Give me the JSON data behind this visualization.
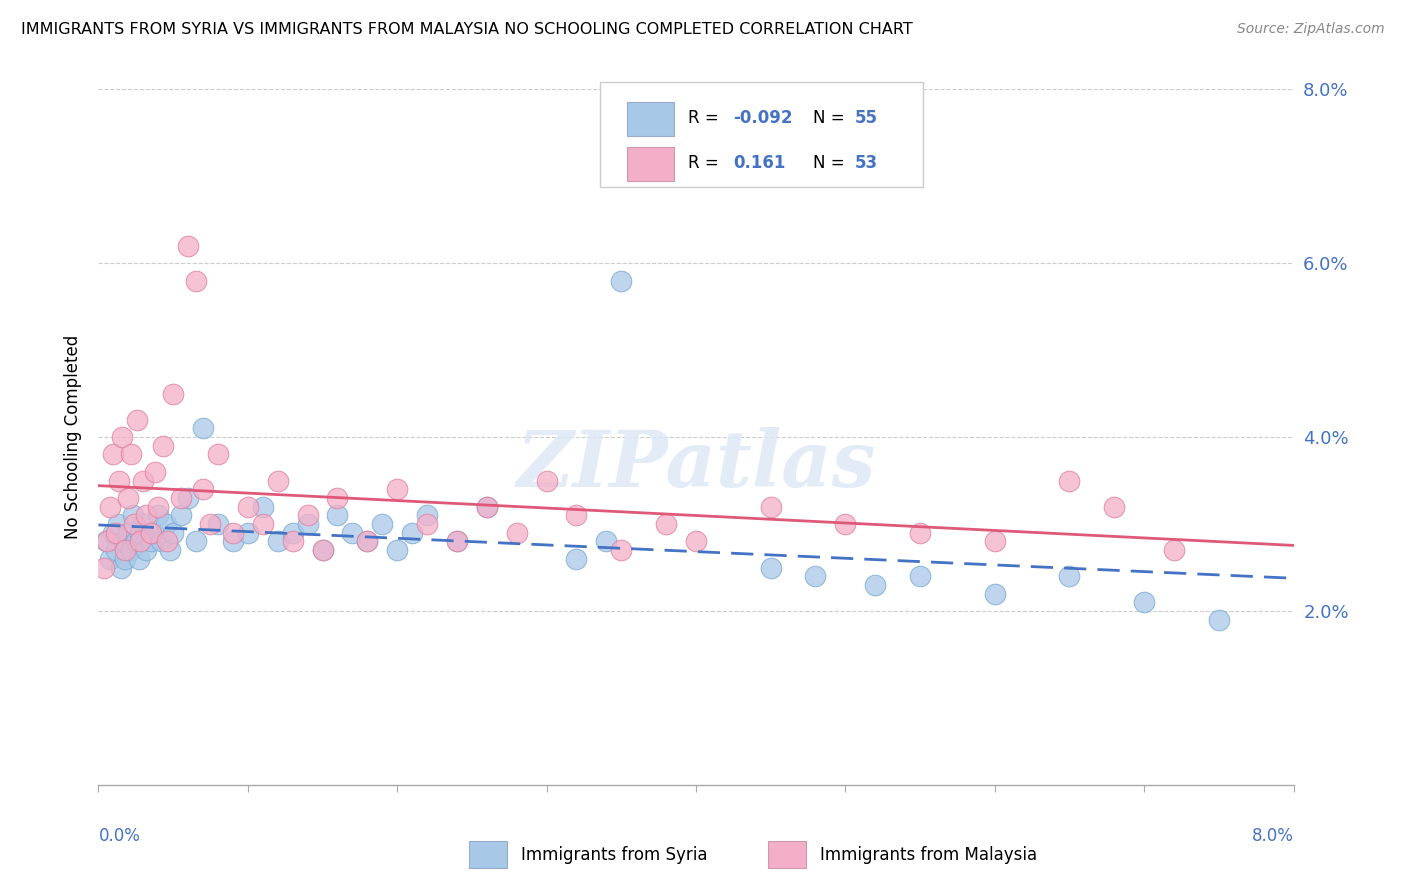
{
  "title": "IMMIGRANTS FROM SYRIA VS IMMIGRANTS FROM MALAYSIA NO SCHOOLING COMPLETED CORRELATION CHART",
  "source": "Source: ZipAtlas.com",
  "ylabel": "No Schooling Completed",
  "legend_syria": "Immigrants from Syria",
  "legend_malaysia": "Immigrants from Malaysia",
  "r_syria": "-0.092",
  "n_syria": "55",
  "r_malaysia": "0.161",
  "n_malaysia": "53",
  "xlim": [
    0.0,
    8.0
  ],
  "ylim": [
    0.0,
    8.0
  ],
  "color_syria": "#a8c8e8",
  "color_malaysia": "#f4afc8",
  "color_syria_line": "#4472c4",
  "color_malaysia_line": "#e05878",
  "watermark": "ZIPatlas",
  "syria_x": [
    0.05,
    0.08,
    0.1,
    0.12,
    0.13,
    0.15,
    0.17,
    0.18,
    0.2,
    0.22,
    0.23,
    0.25,
    0.27,
    0.28,
    0.3,
    0.32,
    0.35,
    0.37,
    0.4,
    0.42,
    0.45,
    0.48,
    0.5,
    0.55,
    0.6,
    0.65,
    0.7,
    0.8,
    0.9,
    1.0,
    1.1,
    1.2,
    1.3,
    1.4,
    1.5,
    1.6,
    1.7,
    1.8,
    1.9,
    2.0,
    2.1,
    2.2,
    2.4,
    2.6,
    3.2,
    3.4,
    3.5,
    4.5,
    4.8,
    5.2,
    5.5,
    6.0,
    6.5,
    7.0,
    7.5
  ],
  "syria_y": [
    2.8,
    2.6,
    2.9,
    2.7,
    3.0,
    2.5,
    2.8,
    2.6,
    2.9,
    2.7,
    3.1,
    2.8,
    2.6,
    2.9,
    3.0,
    2.7,
    2.8,
    2.9,
    3.1,
    2.8,
    3.0,
    2.7,
    2.9,
    3.1,
    3.3,
    2.8,
    4.1,
    3.0,
    2.8,
    2.9,
    3.2,
    2.8,
    2.9,
    3.0,
    2.7,
    3.1,
    2.9,
    2.8,
    3.0,
    2.7,
    2.9,
    3.1,
    2.8,
    3.2,
    2.6,
    2.8,
    5.8,
    2.5,
    2.4,
    2.3,
    2.4,
    2.2,
    2.4,
    2.1,
    1.9
  ],
  "malaysia_x": [
    0.04,
    0.06,
    0.08,
    0.1,
    0.12,
    0.14,
    0.16,
    0.18,
    0.2,
    0.22,
    0.24,
    0.26,
    0.28,
    0.3,
    0.32,
    0.35,
    0.38,
    0.4,
    0.43,
    0.46,
    0.5,
    0.55,
    0.6,
    0.65,
    0.7,
    0.75,
    0.8,
    0.9,
    1.0,
    1.1,
    1.2,
    1.3,
    1.4,
    1.5,
    1.6,
    1.8,
    2.0,
    2.2,
    2.4,
    2.6,
    2.8,
    3.0,
    3.2,
    3.5,
    3.8,
    4.0,
    4.5,
    5.0,
    5.5,
    6.0,
    6.5,
    6.8,
    7.2
  ],
  "malaysia_y": [
    2.5,
    2.8,
    3.2,
    3.8,
    2.9,
    3.5,
    4.0,
    2.7,
    3.3,
    3.8,
    3.0,
    4.2,
    2.8,
    3.5,
    3.1,
    2.9,
    3.6,
    3.2,
    3.9,
    2.8,
    4.5,
    3.3,
    6.2,
    5.8,
    3.4,
    3.0,
    3.8,
    2.9,
    3.2,
    3.0,
    3.5,
    2.8,
    3.1,
    2.7,
    3.3,
    2.8,
    3.4,
    3.0,
    2.8,
    3.2,
    2.9,
    3.5,
    3.1,
    2.7,
    3.0,
    2.8,
    3.2,
    3.0,
    2.9,
    2.8,
    3.5,
    3.2,
    2.7
  ]
}
